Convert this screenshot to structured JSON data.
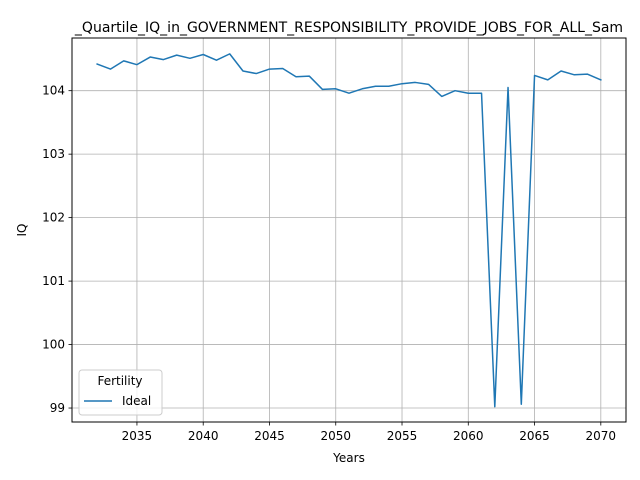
{
  "chart_data": {
    "type": "line",
    "title": "_Quartile_IQ_in_GOVERNMENT_RESPONSIBILITY_PROVIDE_JOBS_FOR_ALL_Sam",
    "xlabel": "Years",
    "ylabel": "IQ",
    "xlim": [
      2030.1,
      2071.9
    ],
    "ylim": [
      98.78,
      104.83
    ],
    "x_ticks": [
      2035,
      2040,
      2045,
      2050,
      2055,
      2060,
      2065,
      2070
    ],
    "y_ticks": [
      99,
      100,
      101,
      102,
      103,
      104
    ],
    "grid": true,
    "legend": {
      "title": "Fertility",
      "location": "lower-left"
    },
    "series": [
      {
        "name": "Ideal",
        "color": "#1f77b4",
        "x": [
          2032,
          2033,
          2034,
          2035,
          2036,
          2037,
          2038,
          2039,
          2040,
          2041,
          2042,
          2043,
          2044,
          2045,
          2046,
          2047,
          2048,
          2049,
          2050,
          2051,
          2052,
          2053,
          2054,
          2055,
          2056,
          2057,
          2058,
          2059,
          2060,
          2061,
          2062,
          2063,
          2064,
          2065,
          2066,
          2067,
          2068,
          2069,
          2070
        ],
        "y": [
          104.42,
          104.34,
          104.47,
          104.41,
          104.53,
          104.49,
          104.56,
          104.51,
          104.57,
          104.48,
          104.58,
          104.31,
          104.27,
          104.34,
          104.35,
          104.22,
          104.23,
          104.02,
          104.03,
          103.96,
          104.03,
          104.07,
          104.07,
          104.11,
          104.13,
          104.1,
          103.91,
          104.0,
          103.96,
          103.96,
          99.02,
          104.05,
          99.06,
          104.24,
          104.17,
          104.31,
          104.25,
          104.26,
          104.17
        ]
      }
    ]
  }
}
